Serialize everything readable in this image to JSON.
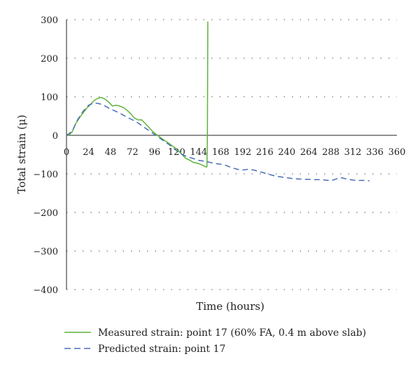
{
  "chart_data": {
    "type": "line",
    "xlabel": "Time (hours)",
    "ylabel": "Total strain (μ)",
    "xlim": [
      0,
      360
    ],
    "ylim": [
      -400,
      300
    ],
    "xticks": [
      "0",
      "24",
      "48",
      "72",
      "96",
      "120",
      "144",
      "168",
      "192",
      "216",
      "240",
      "264",
      "288",
      "312",
      "336",
      "360"
    ],
    "yticks": [
      "300",
      "200",
      "100",
      "0",
      "−100",
      "−200",
      "−300",
      "−400"
    ],
    "grid": "dotted horizontal",
    "legend_position": "bottom",
    "series": [
      {
        "name": "Measured strain: point 17 (60% FA, 0.4 m above slab)",
        "color": "#5cb338",
        "style": "solid",
        "x": [
          2,
          6,
          10,
          14,
          18,
          22,
          26,
          30,
          34,
          38,
          42,
          46,
          50,
          54,
          58,
          62,
          66,
          70,
          74,
          78,
          82,
          86,
          90,
          94,
          98,
          102,
          106,
          110,
          114,
          118,
          122,
          126,
          130,
          134,
          138,
          142,
          146,
          150,
          152,
          153,
          153.5,
          154
        ],
        "y": [
          0,
          8,
          30,
          45,
          58,
          70,
          80,
          90,
          96,
          98,
          94,
          86,
          76,
          78,
          76,
          72,
          65,
          56,
          45,
          40,
          40,
          30,
          20,
          10,
          2,
          -5,
          -12,
          -18,
          -25,
          -32,
          -40,
          -50,
          -60,
          -64,
          -70,
          -72,
          -75,
          -80,
          -82,
          -82,
          0,
          295
        ]
      },
      {
        "name": "Predicted strain: point 17",
        "color": "#4a6fb5",
        "style": "dashed",
        "x": [
          0,
          6,
          12,
          18,
          24,
          30,
          36,
          42,
          48,
          54,
          60,
          66,
          72,
          78,
          84,
          90,
          96,
          102,
          108,
          114,
          120,
          126,
          132,
          138,
          144,
          150,
          156,
          162,
          168,
          174,
          180,
          186,
          192,
          198,
          204,
          210,
          216,
          222,
          228,
          234,
          240,
          246,
          252,
          258,
          264,
          270,
          276,
          282,
          288,
          294,
          300,
          306,
          312,
          318,
          324,
          330
        ],
        "y": [
          0,
          10,
          40,
          62,
          78,
          84,
          82,
          76,
          68,
          62,
          55,
          47,
          40,
          32,
          22,
          12,
          2,
          -8,
          -18,
          -28,
          -40,
          -50,
          -56,
          -60,
          -65,
          -67,
          -70,
          -73,
          -75,
          -78,
          -84,
          -88,
          -90,
          -88,
          -90,
          -94,
          -98,
          -102,
          -106,
          -108,
          -110,
          -112,
          -113,
          -114,
          -114,
          -115,
          -115,
          -116,
          -118,
          -113,
          -110,
          -114,
          -116,
          -117,
          -117,
          -118
        ]
      }
    ]
  }
}
